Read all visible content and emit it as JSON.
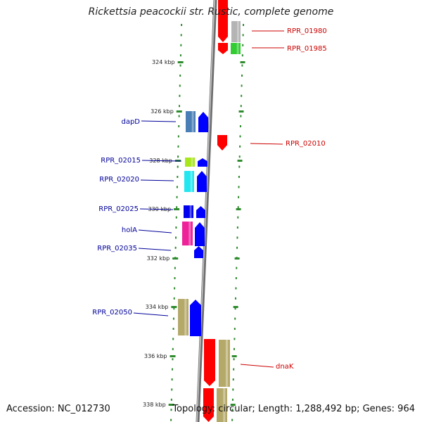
{
  "title": "Rickettsia peacockii str. Rustic, complete genome",
  "footer": {
    "accession": "Accession: NC_012730",
    "summary": "Topology: circular; Length: 1,288,492 bp; Genes: 964"
  },
  "colors": {
    "ruler": "#2e8b2e",
    "backbone": "#808080",
    "forward_label": "#cc0000",
    "reverse_label": "#000099"
  },
  "ruler_labels": [
    "324 kbp",
    "326 kbp",
    "328 kbp",
    "330 kbp",
    "332 kbp",
    "334 kbp",
    "336 kbp",
    "338 kbp"
  ],
  "features": [
    {
      "label": "RPR_01980",
      "strand": "forward",
      "cds_color": "#ff0000",
      "gene_color": "#b4b4b4"
    },
    {
      "label": "RPR_01985",
      "strand": "forward",
      "cds_color": "#ff0000",
      "gene_color": "#33cc33"
    },
    {
      "label": "RPR_02010",
      "strand": "forward",
      "cds_color": "#ff0000",
      "gene_color": null
    },
    {
      "label": "dapD",
      "strand": "reverse",
      "cds_color": "#0000ff",
      "gene_color": "#4a7fb5"
    },
    {
      "label": "RPR_02015",
      "strand": "reverse",
      "cds_color": "#0000ff",
      "gene_color": "#a8e61e"
    },
    {
      "label": "RPR_02020",
      "strand": "reverse",
      "cds_color": "#0000ff",
      "gene_color": "#22e6f0"
    },
    {
      "label": "RPR_02025",
      "strand": "reverse",
      "cds_color": "#0000ff",
      "gene_color": "#0000ee"
    },
    {
      "label": "holA",
      "strand": "reverse",
      "cds_color": "#0000ff",
      "gene_color": "#ee2299"
    },
    {
      "label": "RPR_02035",
      "strand": "reverse",
      "cds_color": "#0000ff",
      "gene_color": null
    },
    {
      "label": "RPR_02050",
      "strand": "reverse",
      "cds_color": "#0000ff",
      "gene_color": "#b5a96a"
    },
    {
      "label": "dnaK",
      "strand": "forward",
      "cds_color": "#ff0000",
      "gene_color": "#b5a96a"
    }
  ]
}
